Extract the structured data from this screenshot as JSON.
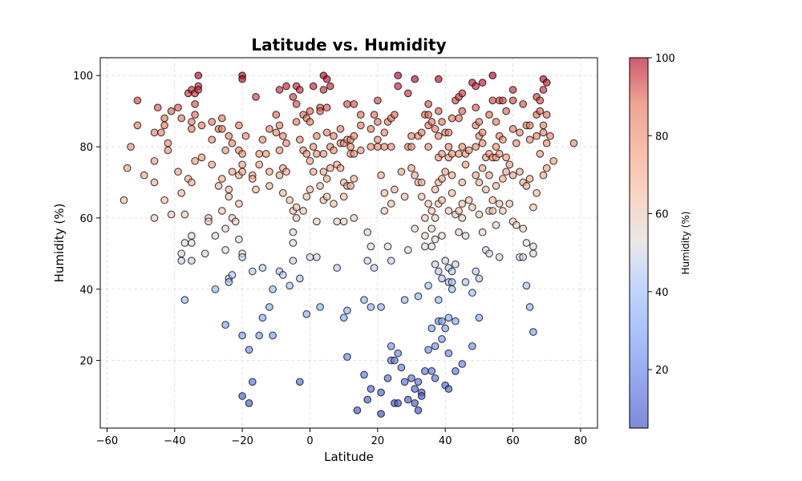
{
  "chart_data": {
    "type": "scatter",
    "title": "Latitude vs. Humidity",
    "xlabel": "Latitude",
    "ylabel": "Humidity (%)",
    "xlim": [
      -62,
      85
    ],
    "ylim": [
      1,
      105
    ],
    "xticks": [
      -60,
      -40,
      -20,
      0,
      20,
      40,
      60,
      80
    ],
    "yticks": [
      20,
      40,
      60,
      80,
      100
    ],
    "grid": true,
    "colorbar": {
      "label": "Humidity (%)",
      "colormap": "coolwarm",
      "range": [
        5,
        100
      ],
      "ticks": [
        20,
        40,
        60,
        80,
        100
      ]
    },
    "points": [
      [
        -55,
        65
      ],
      [
        -54,
        74
      ],
      [
        -53,
        80
      ],
      [
        -51,
        93
      ],
      [
        -51,
        86
      ],
      [
        -49,
        72
      ],
      [
        -46,
        76
      ],
      [
        -46,
        84
      ],
      [
        -46,
        70
      ],
      [
        -46,
        60
      ],
      [
        -45,
        91
      ],
      [
        -44,
        84
      ],
      [
        -43,
        88
      ],
      [
        -43,
        86
      ],
      [
        -42,
        79
      ],
      [
        -42,
        81
      ],
      [
        -43,
        65
      ],
      [
        -41,
        90
      ],
      [
        -41,
        61
      ],
      [
        -39,
        91
      ],
      [
        -39,
        73
      ],
      [
        -38,
        88
      ],
      [
        -38,
        67
      ],
      [
        -38,
        50
      ],
      [
        -38,
        48
      ],
      [
        -37,
        61
      ],
      [
        -37,
        53
      ],
      [
        -37,
        37
      ],
      [
        -36,
        95
      ],
      [
        -36,
        71
      ],
      [
        -35,
        96
      ],
      [
        -35,
        87
      ],
      [
        -35,
        85
      ],
      [
        -35,
        70
      ],
      [
        -35,
        55
      ],
      [
        -35,
        53
      ],
      [
        -35,
        48
      ],
      [
        -34,
        95
      ],
      [
        -34,
        92
      ],
      [
        -34,
        89
      ],
      [
        -34,
        76
      ],
      [
        -33,
        97
      ],
      [
        -33,
        96
      ],
      [
        -33,
        100
      ],
      [
        -32,
        86
      ],
      [
        -32,
        77
      ],
      [
        -31,
        50
      ],
      [
        -30,
        60
      ],
      [
        -30,
        59
      ],
      [
        -29,
        87
      ],
      [
        -29,
        82
      ],
      [
        -29,
        75
      ],
      [
        -28,
        55
      ],
      [
        -28,
        40
      ],
      [
        -27,
        85
      ],
      [
        -27,
        69
      ],
      [
        -26,
        88
      ],
      [
        -26,
        85
      ],
      [
        -26,
        71
      ],
      [
        -26,
        62
      ],
      [
        -25,
        79
      ],
      [
        -25,
        57
      ],
      [
        -25,
        51
      ],
      [
        -25,
        30
      ],
      [
        -24,
        83
      ],
      [
        -24,
        68
      ],
      [
        -24,
        66
      ],
      [
        -24,
        43
      ],
      [
        -24,
        42
      ],
      [
        -23,
        81
      ],
      [
        -23,
        73
      ],
      [
        -23,
        60
      ],
      [
        -23,
        44
      ],
      [
        -22,
        59
      ],
      [
        -21,
        86
      ],
      [
        -21,
        79
      ],
      [
        -21,
        72
      ],
      [
        -21,
        64
      ],
      [
        -21,
        54
      ],
      [
        -20,
        100
      ],
      [
        -20,
        99
      ],
      [
        -20,
        78
      ],
      [
        -20,
        75
      ],
      [
        -20,
        73
      ],
      [
        -20,
        50
      ],
      [
        -20,
        49
      ],
      [
        -20,
        27
      ],
      [
        -20,
        10
      ],
      [
        -19,
        83
      ],
      [
        -18,
        23
      ],
      [
        -18,
        8
      ],
      [
        -17,
        72
      ],
      [
        -17,
        71
      ],
      [
        -17,
        45
      ],
      [
        -17,
        14
      ],
      [
        -16,
        94
      ],
      [
        -16,
        68
      ],
      [
        -15,
        78
      ],
      [
        -15,
        75
      ],
      [
        -15,
        27
      ],
      [
        -14,
        82
      ],
      [
        -14,
        46
      ],
      [
        -14,
        32
      ],
      [
        -13,
        78
      ],
      [
        -12,
        85
      ],
      [
        -12,
        73
      ],
      [
        -12,
        69
      ],
      [
        -12,
        35
      ],
      [
        -11,
        40
      ],
      [
        -11,
        27
      ],
      [
        -10,
        89
      ],
      [
        -10,
        84
      ],
      [
        -9,
        96
      ],
      [
        -9,
        86
      ],
      [
        -9,
        79
      ],
      [
        -9,
        72
      ],
      [
        -9,
        45
      ],
      [
        -8,
        83
      ],
      [
        -8,
        74
      ],
      [
        -8,
        67
      ],
      [
        -8,
        44
      ],
      [
        -7,
        97
      ],
      [
        -7,
        81
      ],
      [
        -7,
        73
      ],
      [
        -6,
        65
      ],
      [
        -6,
        41
      ],
      [
        -5,
        94
      ],
      [
        -5,
        62
      ],
      [
        -5,
        56
      ],
      [
        -5,
        53
      ],
      [
        -5,
        48
      ],
      [
        -4,
        97
      ],
      [
        -4,
        92
      ],
      [
        -4,
        87
      ],
      [
        -4,
        63
      ],
      [
        -4,
        60
      ],
      [
        -3,
        96
      ],
      [
        -3,
        82
      ],
      [
        -3,
        43
      ],
      [
        -3,
        14
      ],
      [
        -2,
        89
      ],
      [
        -2,
        79
      ],
      [
        -2,
        62
      ],
      [
        -1,
        88
      ],
      [
        -1,
        78
      ],
      [
        -1,
        66
      ],
      [
        -1,
        33
      ],
      [
        0,
        90
      ],
      [
        0,
        87
      ],
      [
        0,
        76
      ],
      [
        0,
        68
      ],
      [
        0,
        49
      ],
      [
        1,
        97
      ],
      [
        1,
        80
      ],
      [
        1,
        73
      ],
      [
        2,
        83
      ],
      [
        2,
        78
      ],
      [
        2,
        59
      ],
      [
        2,
        49
      ],
      [
        3,
        91
      ],
      [
        3,
        90
      ],
      [
        3,
        69
      ],
      [
        3,
        35
      ],
      [
        4,
        100
      ],
      [
        4,
        96
      ],
      [
        4,
        78
      ],
      [
        4,
        73
      ],
      [
        4,
        65
      ],
      [
        5,
        99
      ],
      [
        5,
        91
      ],
      [
        5,
        84
      ],
      [
        5,
        71
      ],
      [
        5,
        66
      ],
      [
        6,
        97
      ],
      [
        6,
        80
      ],
      [
        6,
        74
      ],
      [
        7,
        83
      ],
      [
        7,
        79
      ],
      [
        7,
        64
      ],
      [
        8,
        75
      ],
      [
        8,
        59
      ],
      [
        8,
        46
      ],
      [
        9,
        85
      ],
      [
        9,
        81
      ],
      [
        9,
        74
      ],
      [
        10,
        81
      ],
      [
        10,
        70
      ],
      [
        10,
        66
      ],
      [
        10,
        59
      ],
      [
        10,
        32
      ],
      [
        11,
        92
      ],
      [
        11,
        82
      ],
      [
        11,
        69
      ],
      [
        11,
        34
      ],
      [
        11,
        21
      ],
      [
        12,
        82
      ],
      [
        12,
        80
      ],
      [
        12,
        78
      ],
      [
        12,
        69
      ],
      [
        13,
        92
      ],
      [
        13,
        83
      ],
      [
        13,
        78
      ],
      [
        13,
        71
      ],
      [
        13,
        60
      ],
      [
        14,
        6
      ],
      [
        15,
        89
      ],
      [
        15,
        86
      ],
      [
        15,
        79
      ],
      [
        16,
        37
      ],
      [
        16,
        16
      ],
      [
        17,
        56
      ],
      [
        17,
        48
      ],
      [
        17,
        9
      ],
      [
        18,
        85
      ],
      [
        18,
        80
      ],
      [
        18,
        52
      ],
      [
        18,
        35
      ],
      [
        18,
        12
      ],
      [
        19,
        89
      ],
      [
        19,
        46
      ],
      [
        20,
        93
      ],
      [
        20,
        87
      ],
      [
        20,
        82
      ],
      [
        20,
        80
      ],
      [
        21,
        72
      ],
      [
        21,
        35
      ],
      [
        21,
        11
      ],
      [
        21,
        5
      ],
      [
        22,
        84
      ],
      [
        22,
        80
      ],
      [
        22,
        67
      ],
      [
        22,
        62
      ],
      [
        23,
        87
      ],
      [
        23,
        52
      ],
      [
        23,
        15
      ],
      [
        24,
        88
      ],
      [
        24,
        80
      ],
      [
        24,
        64
      ],
      [
        24,
        48
      ],
      [
        24,
        24
      ],
      [
        24,
        20
      ],
      [
        25,
        89
      ],
      [
        25,
        68
      ],
      [
        25,
        20
      ],
      [
        25,
        8
      ],
      [
        26,
        100
      ],
      [
        26,
        97
      ],
      [
        26,
        22
      ],
      [
        26,
        8
      ],
      [
        27,
        73
      ],
      [
        27,
        18
      ],
      [
        28,
        66
      ],
      [
        28,
        37
      ],
      [
        28,
        14
      ],
      [
        29,
        95
      ],
      [
        29,
        80
      ],
      [
        29,
        51
      ],
      [
        29,
        9
      ],
      [
        30,
        83
      ],
      [
        30,
        80
      ],
      [
        30,
        74
      ],
      [
        30,
        15
      ],
      [
        31,
        99
      ],
      [
        31,
        72
      ],
      [
        31,
        57
      ],
      [
        31,
        12
      ],
      [
        31,
        8
      ],
      [
        32,
        83
      ],
      [
        32,
        70
      ],
      [
        32,
        38
      ],
      [
        32,
        14
      ],
      [
        32,
        6
      ],
      [
        33,
        84
      ],
      [
        33,
        70
      ],
      [
        33,
        66
      ],
      [
        33,
        11
      ],
      [
        33,
        10
      ],
      [
        34,
        89
      ],
      [
        34,
        60
      ],
      [
        34,
        55
      ],
      [
        34,
        52
      ],
      [
        34,
        17
      ],
      [
        35,
        92
      ],
      [
        35,
        89
      ],
      [
        35,
        86
      ],
      [
        35,
        80
      ],
      [
        35,
        64
      ],
      [
        35,
        41
      ],
      [
        35,
        23
      ],
      [
        36,
        87
      ],
      [
        36,
        62
      ],
      [
        36,
        57
      ],
      [
        36,
        52
      ],
      [
        36,
        29
      ],
      [
        36,
        17
      ],
      [
        37,
        85
      ],
      [
        37,
        68
      ],
      [
        37,
        60
      ],
      [
        37,
        54
      ],
      [
        37,
        47
      ],
      [
        37,
        24
      ],
      [
        37,
        15
      ],
      [
        38,
        99
      ],
      [
        38,
        90
      ],
      [
        38,
        83
      ],
      [
        38,
        77
      ],
      [
        38,
        70
      ],
      [
        38,
        64
      ],
      [
        38,
        45
      ],
      [
        38,
        37
      ],
      [
        38,
        31
      ],
      [
        39,
        87
      ],
      [
        39,
        78
      ],
      [
        39,
        71
      ],
      [
        39,
        65
      ],
      [
        39,
        55
      ],
      [
        39,
        43
      ],
      [
        39,
        31
      ],
      [
        39,
        26
      ],
      [
        40,
        84
      ],
      [
        40,
        73
      ],
      [
        40,
        48
      ],
      [
        40,
        29
      ],
      [
        40,
        13
      ],
      [
        41,
        84
      ],
      [
        41,
        80
      ],
      [
        41,
        77
      ],
      [
        41,
        62
      ],
      [
        41,
        46
      ],
      [
        41,
        42
      ],
      [
        41,
        32
      ],
      [
        41,
        22
      ],
      [
        41,
        12
      ],
      [
        42,
        88
      ],
      [
        42,
        78
      ],
      [
        42,
        72
      ],
      [
        42,
        67
      ],
      [
        42,
        45
      ],
      [
        42,
        42
      ],
      [
        42,
        40
      ],
      [
        43,
        93
      ],
      [
        43,
        61
      ],
      [
        43,
        47
      ],
      [
        43,
        31
      ],
      [
        43,
        17
      ],
      [
        44,
        94
      ],
      [
        44,
        88
      ],
      [
        44,
        78
      ],
      [
        44,
        62
      ],
      [
        44,
        56
      ],
      [
        45,
        95
      ],
      [
        45,
        90
      ],
      [
        45,
        80
      ],
      [
        45,
        70
      ],
      [
        45,
        64
      ],
      [
        45,
        60
      ],
      [
        45,
        19
      ],
      [
        46,
        78
      ],
      [
        46,
        75
      ],
      [
        46,
        55
      ],
      [
        46,
        42
      ],
      [
        47,
        79
      ],
      [
        47,
        65
      ],
      [
        48,
        98
      ],
      [
        48,
        63
      ],
      [
        48,
        39
      ],
      [
        48,
        24
      ],
      [
        49,
        97
      ],
      [
        49,
        91
      ],
      [
        49,
        86
      ],
      [
        49,
        80
      ],
      [
        49,
        72
      ],
      [
        49,
        45
      ],
      [
        50,
        87
      ],
      [
        50,
        83
      ],
      [
        50,
        70
      ],
      [
        50,
        61
      ],
      [
        50,
        43
      ],
      [
        50,
        32
      ],
      [
        51,
        98
      ],
      [
        51,
        84
      ],
      [
        51,
        81
      ],
      [
        51,
        74
      ],
      [
        51,
        56
      ],
      [
        52,
        77
      ],
      [
        52,
        68
      ],
      [
        52,
        51
      ],
      [
        53,
        89
      ],
      [
        53,
        78
      ],
      [
        53,
        72
      ],
      [
        53,
        62
      ],
      [
        53,
        50
      ],
      [
        54,
        100
      ],
      [
        54,
        93
      ],
      [
        54,
        77
      ],
      [
        54,
        65
      ],
      [
        54,
        62
      ],
      [
        55,
        87
      ],
      [
        55,
        80
      ],
      [
        55,
        77
      ],
      [
        55,
        69
      ],
      [
        55,
        58
      ],
      [
        56,
        93
      ],
      [
        56,
        83
      ],
      [
        56,
        78
      ],
      [
        56,
        64
      ],
      [
        56,
        49
      ],
      [
        57,
        93
      ],
      [
        57,
        82
      ],
      [
        57,
        71
      ],
      [
        57,
        62
      ],
      [
        58,
        90
      ],
      [
        58,
        77
      ],
      [
        58,
        73
      ],
      [
        59,
        75
      ],
      [
        59,
        64
      ],
      [
        60,
        96
      ],
      [
        60,
        93
      ],
      [
        60,
        85
      ],
      [
        60,
        72
      ],
      [
        60,
        59
      ],
      [
        61,
        81
      ],
      [
        61,
        58
      ],
      [
        62,
        84
      ],
      [
        62,
        73
      ],
      [
        62,
        49
      ],
      [
        63,
        92
      ],
      [
        63,
        70
      ],
      [
        63,
        57
      ],
      [
        63,
        49
      ],
      [
        64,
        86
      ],
      [
        64,
        69
      ],
      [
        64,
        53
      ],
      [
        64,
        41
      ],
      [
        65,
        86
      ],
      [
        65,
        82
      ],
      [
        65,
        71
      ],
      [
        65,
        35
      ],
      [
        66,
        63
      ],
      [
        66,
        52
      ],
      [
        66,
        50
      ],
      [
        66,
        28
      ],
      [
        67,
        94
      ],
      [
        67,
        89
      ],
      [
        67,
        83
      ],
      [
        67,
        67
      ],
      [
        68,
        93
      ],
      [
        68,
        90
      ],
      [
        68,
        78
      ],
      [
        69,
        99
      ],
      [
        69,
        96
      ],
      [
        69,
        86
      ],
      [
        69,
        84
      ],
      [
        69,
        72
      ],
      [
        70,
        98
      ],
      [
        70,
        89
      ],
      [
        70,
        81
      ],
      [
        70,
        74
      ],
      [
        71,
        83
      ],
      [
        72,
        76
      ],
      [
        78,
        81
      ]
    ]
  }
}
